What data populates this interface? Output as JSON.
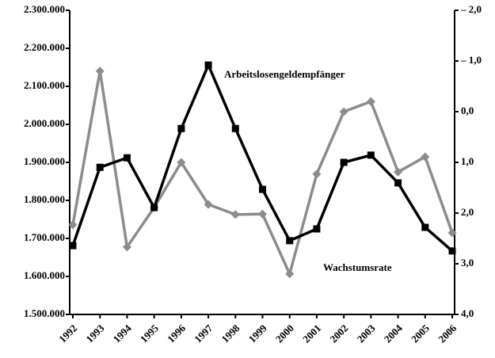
{
  "chart_data": {
    "type": "line",
    "categories": [
      "1992",
      "1993",
      "1994",
      "1995",
      "1996",
      "1997",
      "1998",
      "1999",
      "2000",
      "2001",
      "2002",
      "2003",
      "2004",
      "2005",
      "2006"
    ],
    "series": [
      {
        "name": "Arbeitslosengeldempfänger",
        "color": "#000000",
        "marker": "square",
        "values": [
          1681000,
          1887000,
          1912000,
          1781000,
          1989000,
          2156000,
          1989000,
          1829000,
          1694000,
          1725000,
          1900000,
          1919000,
          1846000,
          1729000,
          1667000
        ]
      },
      {
        "name": "Wachstumsrate",
        "color": "#8c8c8c",
        "marker": "diamond",
        "axis": "y2",
        "values": [
          2.23,
          -0.8,
          2.67,
          1.89,
          1.0,
          1.83,
          2.03,
          2.02,
          3.2,
          1.23,
          0.0,
          -0.2,
          1.19,
          0.89,
          2.39
        ]
      }
    ],
    "ylim": [
      1500000,
      2300000
    ],
    "yticks": [
      {
        "value": 1500000,
        "label": "1.500.000"
      },
      {
        "value": 1600000,
        "label": "1.600.000"
      },
      {
        "value": 1700000,
        "label": "1.700.000"
      },
      {
        "value": 1800000,
        "label": "1.800.000"
      },
      {
        "value": 1900000,
        "label": "1.900.000"
      },
      {
        "value": 2000000,
        "label": "2.000.000"
      },
      {
        "value": 2100000,
        "label": "2.100.000"
      },
      {
        "value": 2200000,
        "label": "2.200.000"
      },
      {
        "value": 2300000,
        "label": "2.300.000"
      }
    ],
    "y2lim": [
      4,
      -2
    ],
    "y2ticks": [
      {
        "value": -2,
        "label": "– 2,0"
      },
      {
        "value": -1,
        "label": "– 1,0"
      },
      {
        "value": 0,
        "label": "0,0"
      },
      {
        "value": 1,
        "label": "1,0"
      },
      {
        "value": 2,
        "label": "2,0"
      },
      {
        "value": 3,
        "label": "3,0"
      },
      {
        "value": 4,
        "label": "4,0"
      }
    ],
    "grid": false
  }
}
